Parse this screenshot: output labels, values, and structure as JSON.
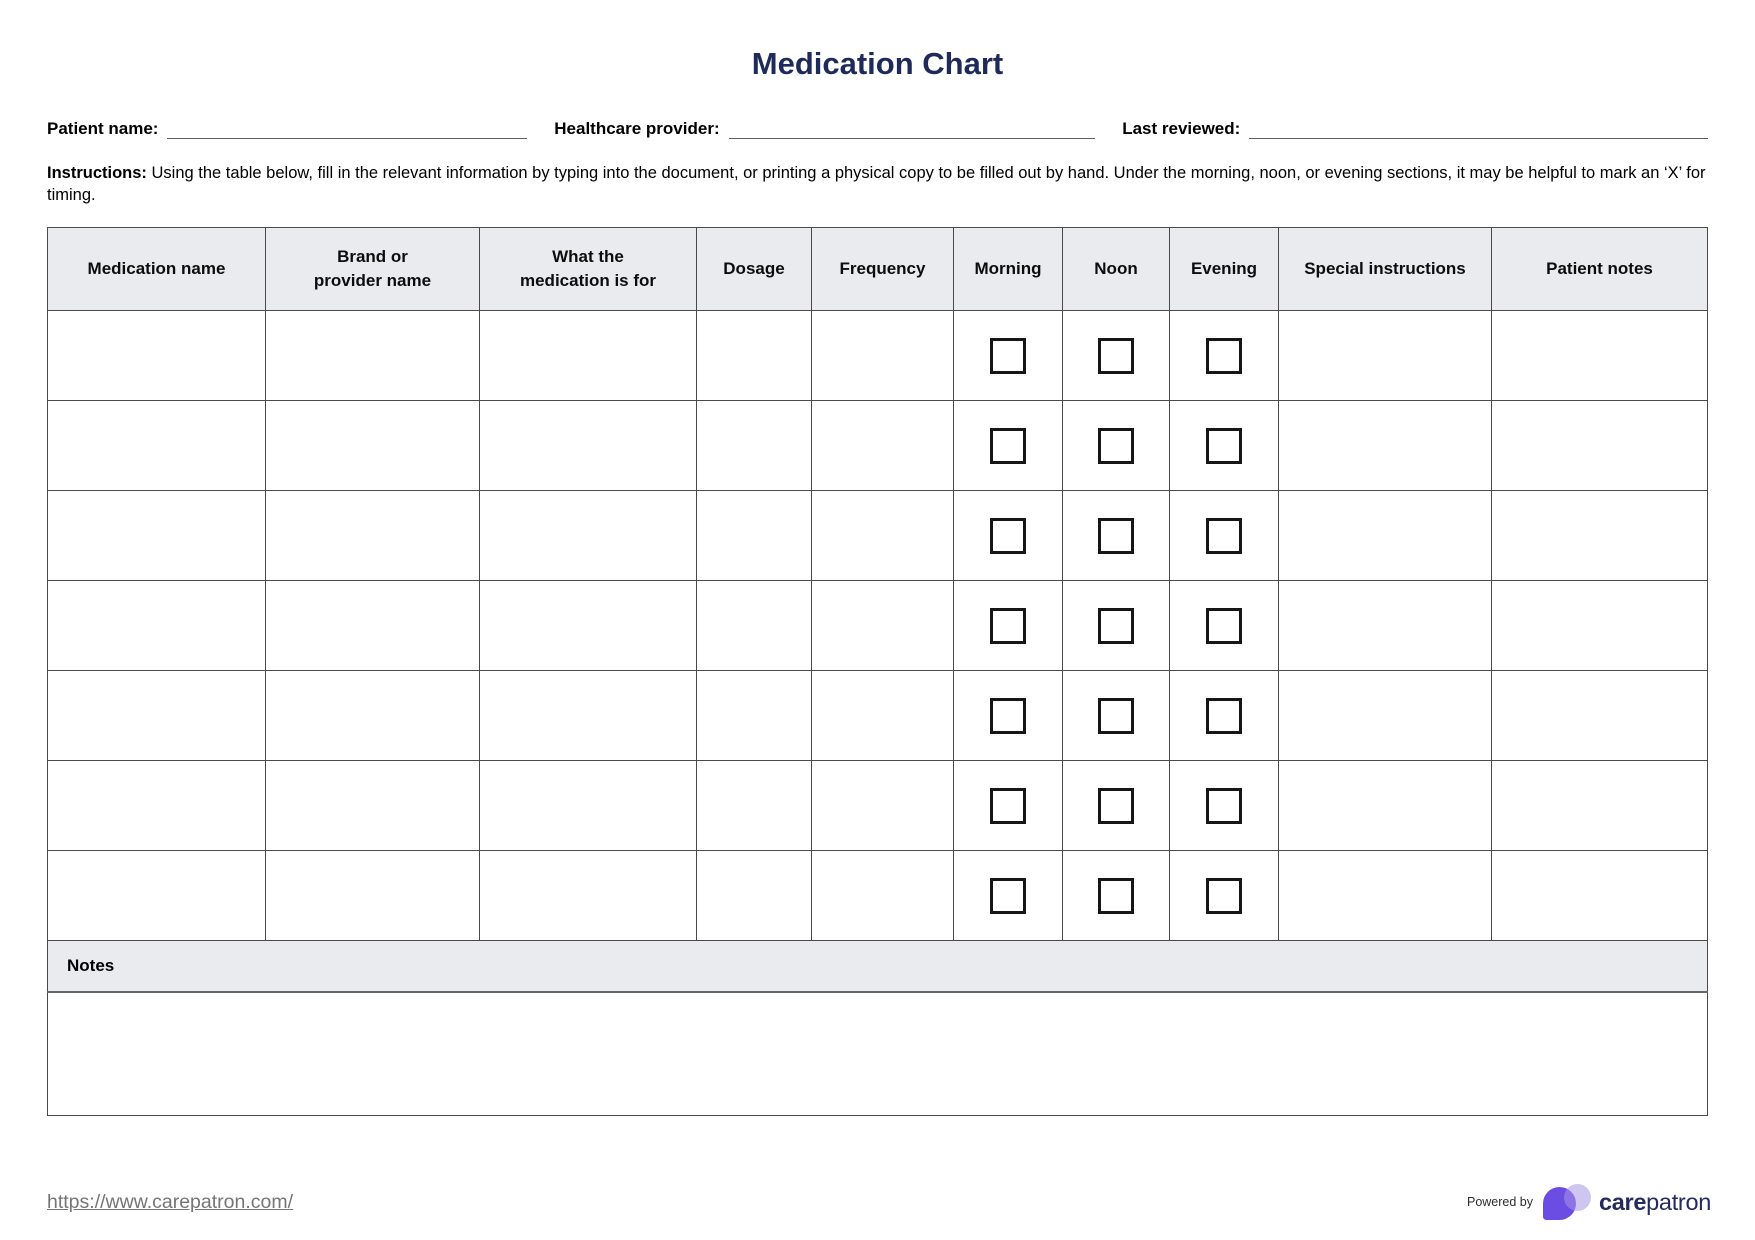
{
  "title": "Medication Chart",
  "fields": {
    "patient_name": {
      "label": "Patient name:",
      "value": ""
    },
    "healthcare_provider": {
      "label": "Healthcare provider:",
      "value": ""
    },
    "last_reviewed": {
      "label": "Last reviewed:",
      "value": ""
    }
  },
  "instructions": {
    "label": "Instructions:",
    "text": "Using the table below, fill in the relevant information by typing into the document, or printing a physical copy to be filled out by hand. Under the morning, noon, or evening sections, it may be helpful to mark an ‘X’ for timing."
  },
  "table": {
    "columns": [
      "Medication name",
      "Brand or\nprovider name",
      "What the\nmedication is for",
      "Dosage",
      "Frequency",
      "Morning",
      "Noon",
      "Evening",
      "Special instructions",
      "Patient notes"
    ],
    "checkbox_columns": [
      "Morning",
      "Noon",
      "Evening"
    ],
    "row_count": 7,
    "checkboxes_checked": false,
    "notes_label": "Notes"
  },
  "footer": {
    "url": "https://www.carepatron.com/",
    "powered_by": "Powered by",
    "brand_bold": "care",
    "brand_regular": "patron"
  },
  "colors": {
    "title_navy": "#1e2a5a",
    "header_row_bg": "#e9ebef",
    "table_border": "#4a4a4a",
    "logo_purple": "#6b4de4",
    "logo_lavender": "#a896e6",
    "brand_navy": "#252a5e",
    "link_gray": "#757575"
  }
}
